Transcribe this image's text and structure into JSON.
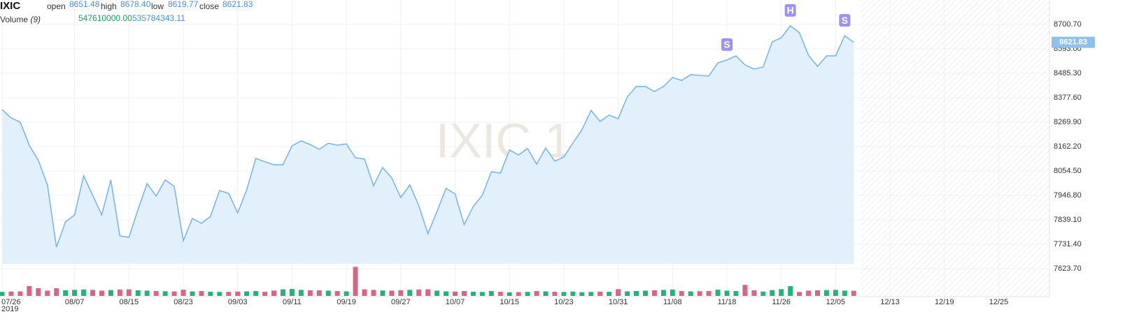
{
  "chart_data": {
    "type": "area",
    "symbol": "IXIC",
    "open_label": "open",
    "open": "8651.48",
    "high_label": "high",
    "high": "8678.40",
    "low_label": "low",
    "low": "8619.77",
    "close_label": "close",
    "close": "8621.83",
    "volume_label": "Volume",
    "volume_period": "(9)",
    "volume_last": "547610000.00",
    "volume_ma": "535784343.11",
    "watermark": "IXIC 1",
    "color": "#7db6e6",
    "fill": "#e2f0fc",
    "x": [
      "2019-07-26",
      "2019-07-29",
      "2019-07-30",
      "2019-07-31",
      "2019-08-01",
      "2019-08-02",
      "2019-08-05",
      "2019-08-06",
      "2019-08-07",
      "2019-08-08",
      "2019-08-09",
      "2019-08-12",
      "2019-08-13",
      "2019-08-14",
      "2019-08-15",
      "2019-08-16",
      "2019-08-19",
      "2019-08-20",
      "2019-08-21",
      "2019-08-22",
      "2019-08-23",
      "2019-08-26",
      "2019-08-27",
      "2019-08-28",
      "2019-08-29",
      "2019-08-30",
      "2019-09-03",
      "2019-09-04",
      "2019-09-05",
      "2019-09-06",
      "2019-09-09",
      "2019-09-10",
      "2019-09-11",
      "2019-09-12",
      "2019-09-13",
      "2019-09-16",
      "2019-09-17",
      "2019-09-18",
      "2019-09-19",
      "2019-09-20",
      "2019-09-23",
      "2019-09-24",
      "2019-09-25",
      "2019-09-26",
      "2019-09-27",
      "2019-09-30",
      "2019-10-01",
      "2019-10-02",
      "2019-10-03",
      "2019-10-04",
      "2019-10-07",
      "2019-10-08",
      "2019-10-09",
      "2019-10-10",
      "2019-10-11",
      "2019-10-14",
      "2019-10-15",
      "2019-10-16",
      "2019-10-17",
      "2019-10-18",
      "2019-10-21",
      "2019-10-22",
      "2019-10-23",
      "2019-10-24",
      "2019-10-25",
      "2019-10-28",
      "2019-10-29",
      "2019-10-30",
      "2019-10-31",
      "2019-11-01",
      "2019-11-04",
      "2019-11-05",
      "2019-11-06",
      "2019-11-07",
      "2019-11-08",
      "2019-11-11",
      "2019-11-12",
      "2019-11-13",
      "2019-11-14",
      "2019-11-15",
      "2019-11-18",
      "2019-11-19",
      "2019-11-20",
      "2019-11-21",
      "2019-11-22",
      "2019-11-25",
      "2019-11-26",
      "2019-11-27",
      "2019-11-29",
      "2019-12-02",
      "2019-12-03",
      "2019-12-04",
      "2019-12-05",
      "2019-12-06",
      "2019-12-09"
    ],
    "values": [
      8325,
      8288,
      8270,
      8168,
      8101,
      7993,
      7719,
      7830,
      7861,
      8033,
      7947,
      7861,
      8015,
      7768,
      7762,
      7885,
      7999,
      7944,
      8015,
      7987,
      7747,
      7845,
      7824,
      7854,
      7968,
      7956,
      7870,
      7971,
      8110,
      8095,
      8082,
      8082,
      8165,
      8187,
      8171,
      8150,
      8177,
      8168,
      8174,
      8113,
      8107,
      7990,
      8070,
      8024,
      7938,
      7993,
      7901,
      7778,
      7876,
      7978,
      7953,
      7818,
      7898,
      7947,
      8051,
      8045,
      8147,
      8125,
      8153,
      8085,
      8156,
      8098,
      8116,
      8178,
      8236,
      8322,
      8273,
      8301,
      8285,
      8381,
      8427,
      8427,
      8405,
      8427,
      8467,
      8454,
      8479,
      8476,
      8473,
      8531,
      8544,
      8562,
      8522,
      8504,
      8513,
      8624,
      8642,
      8695,
      8664,
      8565,
      8516,
      8562,
      8562,
      8651,
      8621.83
    ],
    "ylim": [
      7494.5,
      8808.4
    ],
    "yticks": [
      {
        "value": 7623.7,
        "label": "7623.70"
      },
      {
        "value": 7731.4,
        "label": "7731.40"
      },
      {
        "value": 7839.1,
        "label": "7839.10"
      },
      {
        "value": 7946.8,
        "label": "7946.80"
      },
      {
        "value": 8054.5,
        "label": "8054.50"
      },
      {
        "value": 8162.2,
        "label": "8162.20"
      },
      {
        "value": 8269.9,
        "label": "8269.90"
      },
      {
        "value": 8377.6,
        "label": "8377.60"
      },
      {
        "value": 8485.3,
        "label": "8485.30"
      },
      {
        "value": 8593,
        "label": "8593.00"
      },
      {
        "value": 8700.7,
        "label": "8700.70"
      }
    ],
    "xticks": [
      {
        "value": "2019-07-26",
        "label": "07/26"
      },
      {
        "value": "2019-08-07",
        "label": "08/07"
      },
      {
        "value": "2019-08-15",
        "label": "08/15"
      },
      {
        "value": "2019-08-23",
        "label": "08/23"
      },
      {
        "value": "2019-09-03",
        "label": "09/03"
      },
      {
        "value": "2019-09-11",
        "label": "09/11"
      },
      {
        "value": "2019-09-19",
        "label": "09/19"
      },
      {
        "value": "2019-09-27",
        "label": "09/27"
      },
      {
        "value": "2019-10-07",
        "label": "10/07"
      },
      {
        "value": "2019-10-15",
        "label": "10/15"
      },
      {
        "value": "2019-10-23",
        "label": "10/23"
      },
      {
        "value": "2019-10-31",
        "label": "10/31"
      },
      {
        "value": "2019-11-08",
        "label": "11/08"
      },
      {
        "value": "2019-11-18",
        "label": "11/18"
      },
      {
        "value": "2019-11-26",
        "label": "11/26"
      },
      {
        "value": "2019-12-05",
        "label": "12/05"
      },
      {
        "value": "2019-12-13",
        "label": "12/13"
      },
      {
        "value": "2019-12-19",
        "label": "12/19"
      },
      {
        "value": "2019-12-25",
        "label": "12/25"
      }
    ],
    "x_year_label": "2019",
    "grid": true,
    "annotations": [
      {
        "x": "2019-11-18",
        "label": "S"
      },
      {
        "x": "2019-11-27",
        "label": "H"
      },
      {
        "x": "2019-12-06",
        "label": "S"
      }
    ],
    "annotation_color": "#9d92f2",
    "volume": {
      "values": [
        430000000,
        460000000,
        480000000,
        1050000000,
        820000000,
        560000000,
        820000000,
        600000000,
        640000000,
        680000000,
        640000000,
        560000000,
        620000000,
        680000000,
        700000000,
        600000000,
        560000000,
        520000000,
        500000000,
        470000000,
        660000000,
        480000000,
        520000000,
        440000000,
        420000000,
        430000000,
        460000000,
        480000000,
        520000000,
        440000000,
        560000000,
        700000000,
        740000000,
        640000000,
        600000000,
        600000000,
        560000000,
        520000000,
        480000000,
        3100000000,
        700000000,
        640000000,
        580000000,
        560000000,
        600000000,
        640000000,
        680000000,
        700000000,
        560000000,
        480000000,
        460000000,
        520000000,
        440000000,
        420000000,
        520000000,
        440000000,
        380000000,
        400000000,
        430000000,
        520000000,
        480000000,
        440000000,
        420000000,
        460000000,
        400000000,
        420000000,
        450000000,
        440000000,
        720000000,
        480000000,
        520000000,
        560000000,
        600000000,
        640000000,
        680000000,
        520000000,
        480000000,
        500000000,
        520000000,
        660000000,
        560000000,
        520000000,
        1180000000,
        600000000,
        460000000,
        620000000,
        720000000,
        1040000000,
        420000000,
        560000000,
        600000000,
        620000000,
        640000000,
        560000000,
        547610000
      ],
      "ylim": [
        0,
        3500000000
      ],
      "up_color": "#26b07f",
      "down_color": "#d9648a"
    }
  }
}
